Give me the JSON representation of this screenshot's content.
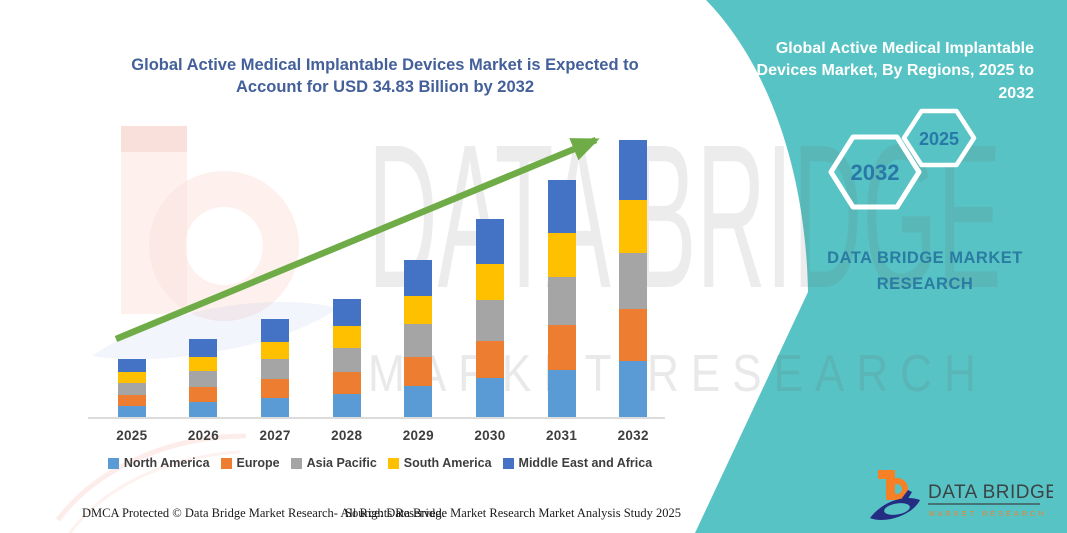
{
  "chart": {
    "title": "Global Active Medical Implantable Devices Market is Expected to Account for USD 34.83 Billion by 2032"
  },
  "chart_data": {
    "type": "bar",
    "stacked": true,
    "categories": [
      "2025",
      "2026",
      "2027",
      "2028",
      "2029",
      "2030",
      "2031",
      "2032"
    ],
    "series": [
      {
        "name": "North America",
        "color": "#5B9BD5",
        "values": [
          1.55,
          2.05,
          2.55,
          3.05,
          4.0,
          5.05,
          6.05,
          7.1
        ]
      },
      {
        "name": "Europe",
        "color": "#ED7D31",
        "values": [
          1.35,
          1.8,
          2.3,
          2.75,
          3.7,
          4.65,
          5.55,
          6.55
        ]
      },
      {
        "name": "Asia Pacific",
        "color": "#A5A5A5",
        "values": [
          1.5,
          2.0,
          2.5,
          3.0,
          4.05,
          5.1,
          6.1,
          7.05
        ]
      },
      {
        "name": "South America",
        "color": "#FFC000",
        "values": [
          1.3,
          1.75,
          2.2,
          2.7,
          3.6,
          4.55,
          5.5,
          6.6
        ]
      },
      {
        "name": "Middle East and Africa",
        "color": "#4472C4",
        "values": [
          1.7,
          2.3,
          2.85,
          3.4,
          4.45,
          5.6,
          6.65,
          7.53
        ]
      }
    ],
    "title": "Global Active Medical Implantable Devices Market is Expected to Account for USD 34.83 Billion by 2032",
    "xlabel": "",
    "ylabel": "",
    "unit": "USD Billion",
    "total_2032": 34.83,
    "ylim": [
      0,
      36
    ],
    "grid": false,
    "legend_position": "bottom",
    "trend_arrow": {
      "present": true,
      "color": "#6FAC47"
    }
  },
  "panel": {
    "heading": "Global Active Medical Implantable Devices Market, By Regions, 2025 to 2032",
    "hexagon_back_year": "2032",
    "hexagon_front_year": "2025",
    "brand_heading": "DATA BRIDGE MARKET RESEARCH",
    "accent_color": "#58C3C4",
    "heading_text_color": "#2A7CA2"
  },
  "logo": {
    "name": "DATA BRIDGE",
    "tagline": "MARKET RESEARCH"
  },
  "watermark": {
    "line1": "DATA BRIDGE",
    "line2": "MARKET RESEARCH"
  },
  "footer": {
    "left": "DMCA Protected © Data Bridge Market Research-  All Rights Reserved.",
    "right": "Source: Data Bridge Market Research  Market Analysis Study 2025"
  }
}
